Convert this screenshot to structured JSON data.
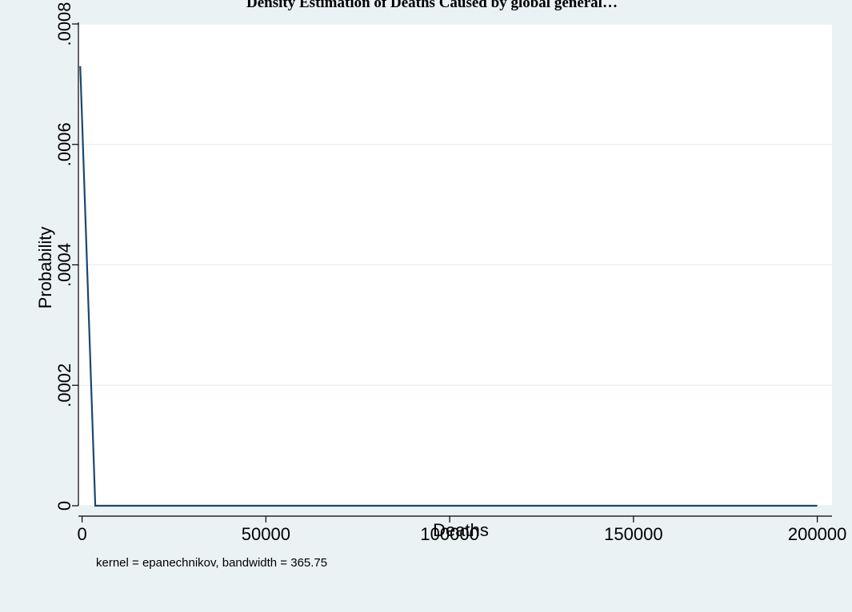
{
  "chart_data": {
    "type": "line",
    "title": "Density Estimation of Deaths Caused by global general…",
    "xlabel": "Deaths",
    "ylabel": "Probability",
    "note": "kernel = epanechnikov, bandwidth = 365.75",
    "xlim": [
      -1000,
      204000
    ],
    "ylim": [
      0,
      0.0008
    ],
    "x_ticks": [
      0,
      50000,
      100000,
      150000,
      200000
    ],
    "x_tick_labels": [
      "0",
      "50000",
      "100000",
      "150000",
      "200000"
    ],
    "y_ticks": [
      0,
      0.0002,
      0.0004,
      0.0006,
      0.0008
    ],
    "y_tick_labels": [
      "0",
      ".0002",
      ".0004",
      ".0006",
      ".0008"
    ],
    "grid": true,
    "series": [
      {
        "x": [
          -500,
          3600,
          200000
        ],
        "y": [
          0.00073,
          0.0,
          0.0
        ],
        "color": "#1a476f"
      }
    ],
    "colors": {
      "background": "#eaf2f3",
      "plot_background": "#ffffff",
      "grid": "#eaf2f3",
      "line": "#1a476f",
      "axis": "#000000"
    }
  }
}
